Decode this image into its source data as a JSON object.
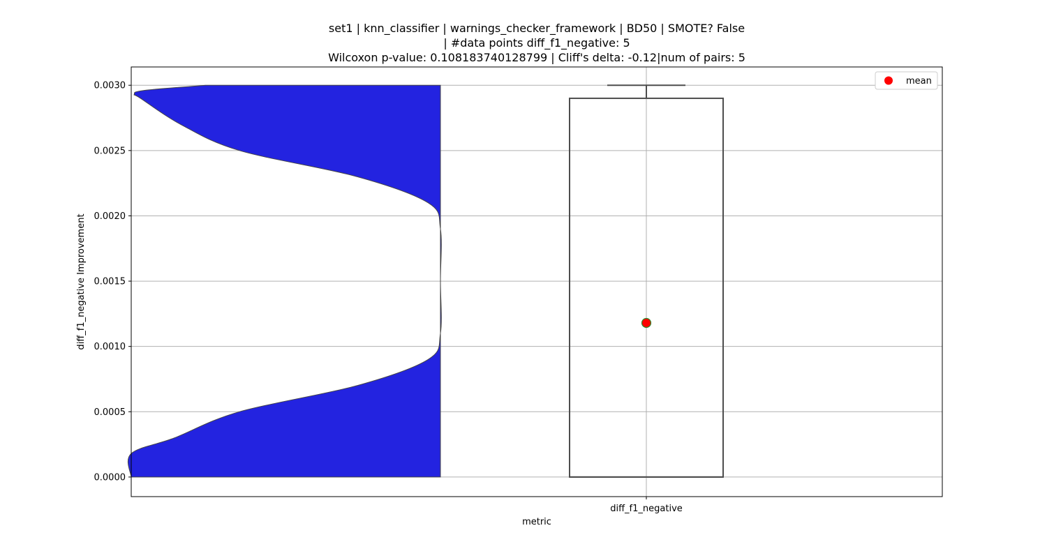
{
  "chart_data": {
    "type": "violin+box",
    "title": [
      "set1 | knn_classifier | warnings_checker_framework | BD50 | SMOTE? False",
      "| #data points diff_f1_negative: 5",
      "Wilcoxon p-value: 0.108183740128799 | Cliff's delta: -0.12|num of pairs: 5"
    ],
    "xlabel": "metric",
    "ylabel": "diff_f1_negative Improvement",
    "categories": [
      "diff_f1_negative"
    ],
    "ylim": [
      -0.00015,
      0.00314
    ],
    "yticks": [
      0.0,
      0.0005,
      0.001,
      0.0015,
      0.002,
      0.0025,
      0.003
    ],
    "ytick_labels": [
      "0.0000",
      "0.0005",
      "0.0010",
      "0.0015",
      "0.0020",
      "0.0025",
      "0.0030"
    ],
    "grid": true,
    "legend": {
      "position": "top-right",
      "entries": [
        "mean"
      ]
    },
    "violin": {
      "color": "#2323e0",
      "y_range": [
        0.0,
        0.003
      ],
      "profile": [
        {
          "y": 0.0,
          "width": 1.0
        },
        {
          "y": 0.00018,
          "width": 1.0
        },
        {
          "y": 0.0003,
          "width": 0.86
        },
        {
          "y": 0.0005,
          "width": 0.65
        },
        {
          "y": 0.0007,
          "width": 0.27
        },
        {
          "y": 0.0009,
          "width": 0.04
        },
        {
          "y": 0.0011,
          "width": 0.0
        },
        {
          "y": 0.0015,
          "width": 0.0
        },
        {
          "y": 0.0019,
          "width": 0.0
        },
        {
          "y": 0.0021,
          "width": 0.04
        },
        {
          "y": 0.0023,
          "width": 0.27
        },
        {
          "y": 0.0025,
          "width": 0.65
        },
        {
          "y": 0.0027,
          "width": 0.84
        },
        {
          "y": 0.0029,
          "width": 0.97
        },
        {
          "y": 0.00293,
          "width": 0.99
        },
        {
          "y": 0.00296,
          "width": 0.96
        },
        {
          "y": 0.003,
          "width": 0.76
        }
      ]
    },
    "box": {
      "category": "diff_f1_negative",
      "whisker_low": 0.0,
      "q1": 0.0,
      "median": 0.0,
      "q3": 0.0029,
      "whisker_high": 0.003,
      "mean": 0.00118
    },
    "colors": {
      "violin_fill": "#2323e0",
      "box_edge": "#4d4d4d",
      "grid": "#b0b0b0",
      "mean_marker": "#ff0000",
      "mean_edge": "#2e8b2e"
    }
  }
}
